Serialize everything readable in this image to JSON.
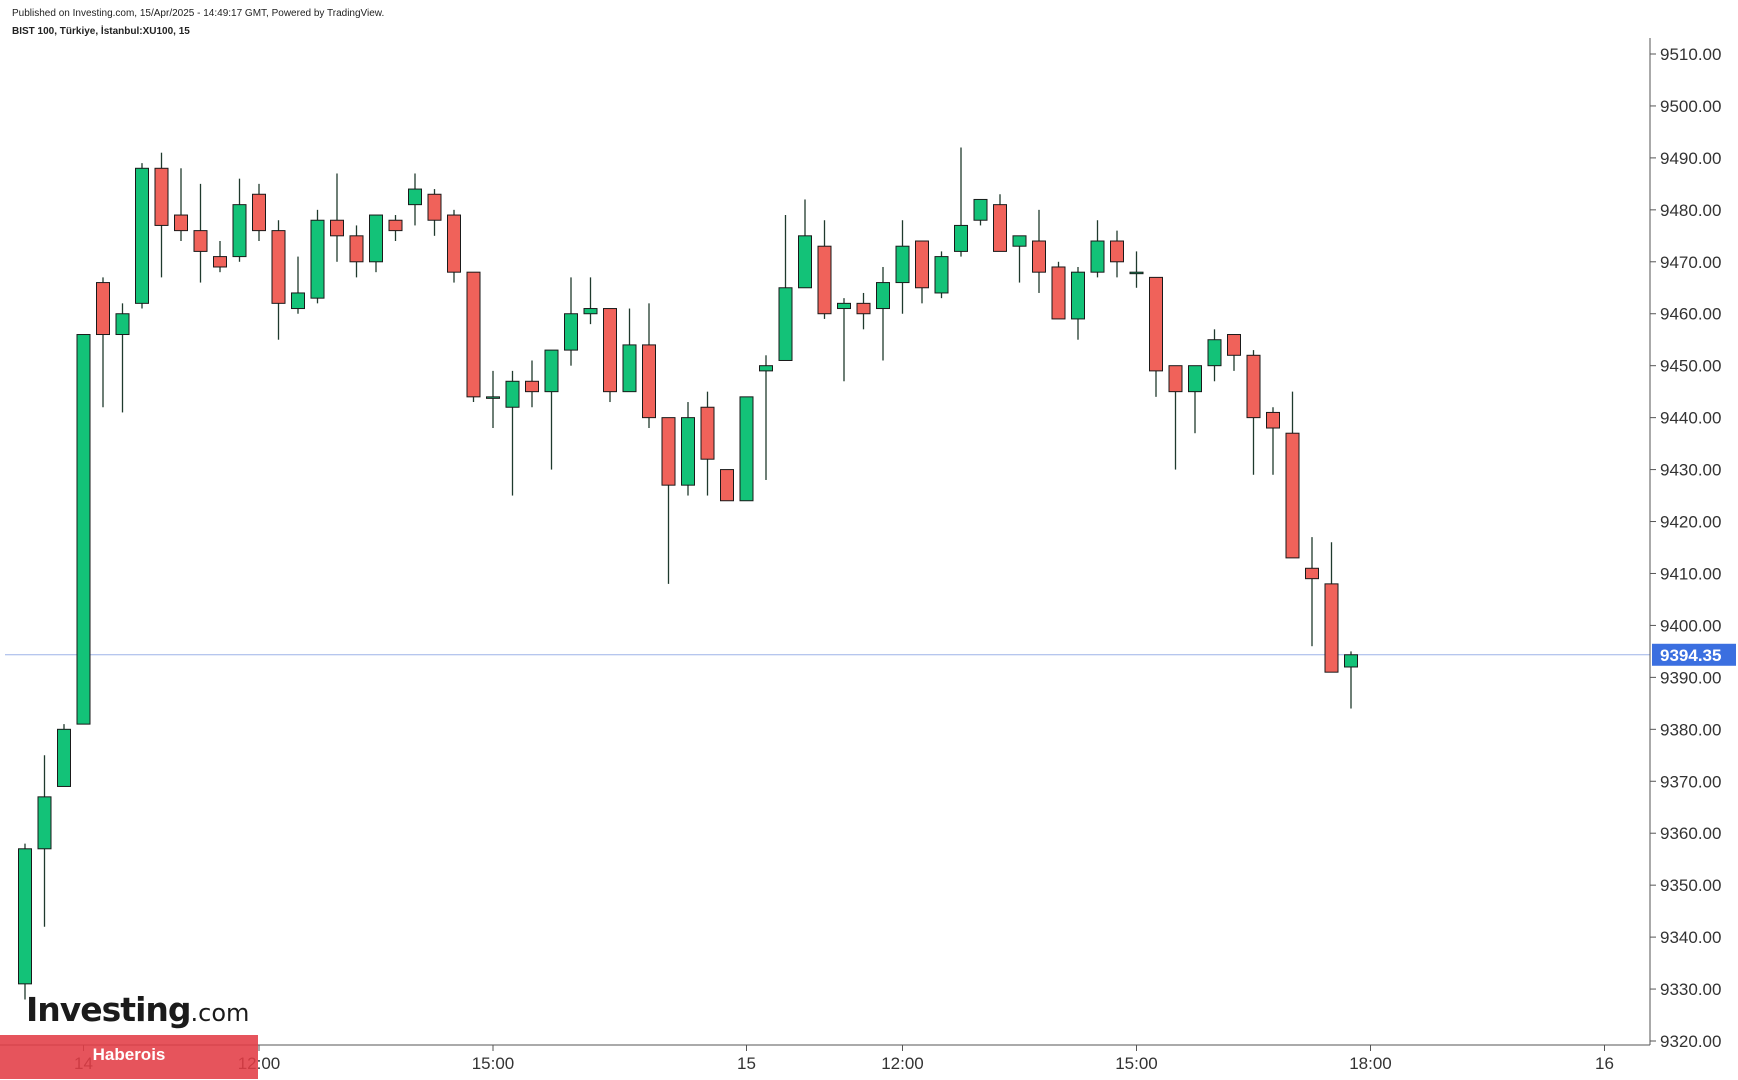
{
  "header": {
    "published": "Published on Investing.com, 15/Apr/2025 - 14:49:17 GMT, Powered by TradingView.",
    "symbol": "BIST 100, Türkiye, İstanbul:XU100, 15"
  },
  "logo": {
    "brand": "Investing",
    "suffix": ".com"
  },
  "watermark": "Haberois",
  "colors": {
    "up": "#13c278",
    "down": "#f0625a",
    "wick": "#1f3a2d",
    "price_line": "#9db4e8",
    "price_label_bg": "#3b6fe0"
  },
  "chart_data": {
    "type": "candlestick",
    "title": "BIST 100, Türkiye, İstanbul:XU100, 15",
    "ylim": [
      9320,
      9512
    ],
    "y_ticks": [
      9320,
      9330,
      9340,
      9350,
      9360,
      9370,
      9380,
      9390,
      9400,
      9410,
      9420,
      9430,
      9440,
      9450,
      9460,
      9470,
      9480,
      9490,
      9500,
      9510
    ],
    "y_tick_labels": [
      "9320.00",
      "9330.00",
      "9340.00",
      "9350.00",
      "9360.00",
      "9370.00",
      "9380.00",
      "9390.00",
      "9400.00",
      "9410.00",
      "9420.00",
      "9430.00",
      "9440.00",
      "9450.00",
      "9460.00",
      "9470.00",
      "9480.00",
      "9490.00",
      "9500.00",
      "9510.00"
    ],
    "x_ticks": [
      {
        "label": "14",
        "index": 3
      },
      {
        "label": "12:00",
        "index": 12
      },
      {
        "label": "15:00",
        "index": 24
      },
      {
        "label": "15",
        "index": 37
      },
      {
        "label": "12:00",
        "index": 45
      },
      {
        "label": "15:00",
        "index": 57
      },
      {
        "label": "18:00",
        "index": 69
      },
      {
        "label": "16",
        "index": 81
      }
    ],
    "last_price": 9394.35,
    "last_price_label": "9394.35",
    "candles": [
      {
        "o": 9331,
        "h": 9358,
        "l": 9328,
        "c": 9357
      },
      {
        "o": 9357,
        "h": 9375,
        "l": 9342,
        "c": 9367
      },
      {
        "o": 9369,
        "h": 9381,
        "l": 9369,
        "c": 9380
      },
      {
        "o": 9381,
        "h": 9456,
        "l": 9381,
        "c": 9456
      },
      {
        "o": 9466,
        "h": 9467,
        "l": 9442,
        "c": 9456
      },
      {
        "o": 9456,
        "h": 9462,
        "l": 9441,
        "c": 9460
      },
      {
        "o": 9462,
        "h": 9489,
        "l": 9461,
        "c": 9488
      },
      {
        "o": 9488,
        "h": 9491,
        "l": 9467,
        "c": 9477
      },
      {
        "o": 9479,
        "h": 9488,
        "l": 9474,
        "c": 9476
      },
      {
        "o": 9476,
        "h": 9485,
        "l": 9466,
        "c": 9472
      },
      {
        "o": 9471,
        "h": 9474,
        "l": 9468,
        "c": 9469
      },
      {
        "o": 9471,
        "h": 9486,
        "l": 9470,
        "c": 9481
      },
      {
        "o": 9483,
        "h": 9485,
        "l": 9474,
        "c": 9476
      },
      {
        "o": 9476,
        "h": 9478,
        "l": 9455,
        "c": 9462
      },
      {
        "o": 9461,
        "h": 9471,
        "l": 9460,
        "c": 9464
      },
      {
        "o": 9463,
        "h": 9480,
        "l": 9462,
        "c": 9478
      },
      {
        "o": 9478,
        "h": 9487,
        "l": 9470,
        "c": 9475
      },
      {
        "o": 9475,
        "h": 9477,
        "l": 9467,
        "c": 9470
      },
      {
        "o": 9470,
        "h": 9479,
        "l": 9468,
        "c": 9479
      },
      {
        "o": 9478,
        "h": 9479,
        "l": 9474,
        "c": 9476
      },
      {
        "o": 9481,
        "h": 9487,
        "l": 9477,
        "c": 9484
      },
      {
        "o": 9483,
        "h": 9484,
        "l": 9475,
        "c": 9478
      },
      {
        "o": 9479,
        "h": 9480,
        "l": 9466,
        "c": 9468
      },
      {
        "o": 9468,
        "h": 9468,
        "l": 9443,
        "c": 9444
      },
      {
        "o": 9444,
        "h": 9449,
        "l": 9438,
        "c": 9444
      },
      {
        "o": 9442,
        "h": 9449,
        "l": 9425,
        "c": 9447
      },
      {
        "o": 9447,
        "h": 9451,
        "l": 9442,
        "c": 9445
      },
      {
        "o": 9445,
        "h": 9453,
        "l": 9430,
        "c": 9453
      },
      {
        "o": 9453,
        "h": 9467,
        "l": 9450,
        "c": 9460
      },
      {
        "o": 9460,
        "h": 9467,
        "l": 9458,
        "c": 9461
      },
      {
        "o": 9461,
        "h": 9461,
        "l": 9443,
        "c": 9445
      },
      {
        "o": 9445,
        "h": 9461,
        "l": 9445,
        "c": 9454
      },
      {
        "o": 9454,
        "h": 9462,
        "l": 9438,
        "c": 9440
      },
      {
        "o": 9440,
        "h": 9440,
        "l": 9408,
        "c": 9427
      },
      {
        "o": 9427,
        "h": 9443,
        "l": 9425,
        "c": 9440
      },
      {
        "o": 9442,
        "h": 9445,
        "l": 9425,
        "c": 9432
      },
      {
        "o": 9430,
        "h": 9430,
        "l": 9424,
        "c": 9424
      },
      {
        "o": 9424,
        "h": 9444,
        "l": 9424,
        "c": 9444
      },
      {
        "o": 9449,
        "h": 9452,
        "l": 9428,
        "c": 9450
      },
      {
        "o": 9451,
        "h": 9479,
        "l": 9451,
        "c": 9465
      },
      {
        "o": 9465,
        "h": 9482,
        "l": 9465,
        "c": 9475
      },
      {
        "o": 9473,
        "h": 9478,
        "l": 9459,
        "c": 9460
      },
      {
        "o": 9461,
        "h": 9463,
        "l": 9447,
        "c": 9462
      },
      {
        "o": 9462,
        "h": 9464,
        "l": 9457,
        "c": 9460
      },
      {
        "o": 9461,
        "h": 9469,
        "l": 9451,
        "c": 9466
      },
      {
        "o": 9466,
        "h": 9478,
        "l": 9460,
        "c": 9473
      },
      {
        "o": 9474,
        "h": 9474,
        "l": 9462,
        "c": 9465
      },
      {
        "o": 9464,
        "h": 9472,
        "l": 9463,
        "c": 9471
      },
      {
        "o": 9472,
        "h": 9492,
        "l": 9471,
        "c": 9477
      },
      {
        "o": 9478,
        "h": 9482,
        "l": 9477,
        "c": 9482
      },
      {
        "o": 9481,
        "h": 9483,
        "l": 9472,
        "c": 9472
      },
      {
        "o": 9473,
        "h": 9475,
        "l": 9466,
        "c": 9475
      },
      {
        "o": 9474,
        "h": 9480,
        "l": 9464,
        "c": 9468
      },
      {
        "o": 9469,
        "h": 9470,
        "l": 9459,
        "c": 9459
      },
      {
        "o": 9459,
        "h": 9469,
        "l": 9455,
        "c": 9468
      },
      {
        "o": 9468,
        "h": 9478,
        "l": 9467,
        "c": 9474
      },
      {
        "o": 9474,
        "h": 9476,
        "l": 9467,
        "c": 9470
      },
      {
        "o": 9468,
        "h": 9472,
        "l": 9465,
        "c": 9468
      },
      {
        "o": 9467,
        "h": 9467,
        "l": 9444,
        "c": 9449
      },
      {
        "o": 9450,
        "h": 9450,
        "l": 9430,
        "c": 9445
      },
      {
        "o": 9445,
        "h": 9450,
        "l": 9437,
        "c": 9450
      },
      {
        "o": 9450,
        "h": 9457,
        "l": 9447,
        "c": 9455
      },
      {
        "o": 9456,
        "h": 9456,
        "l": 9449,
        "c": 9452
      },
      {
        "o": 9452,
        "h": 9453,
        "l": 9429,
        "c": 9440
      },
      {
        "o": 9441,
        "h": 9442,
        "l": 9429,
        "c": 9438
      },
      {
        "o": 9437,
        "h": 9445,
        "l": 9413,
        "c": 9413
      },
      {
        "o": 9411,
        "h": 9417,
        "l": 9396,
        "c": 9409
      },
      {
        "o": 9408,
        "h": 9416,
        "l": 9391,
        "c": 9391
      },
      {
        "o": 9392,
        "h": 9395,
        "l": 9384,
        "c": 9394.35
      }
    ]
  }
}
